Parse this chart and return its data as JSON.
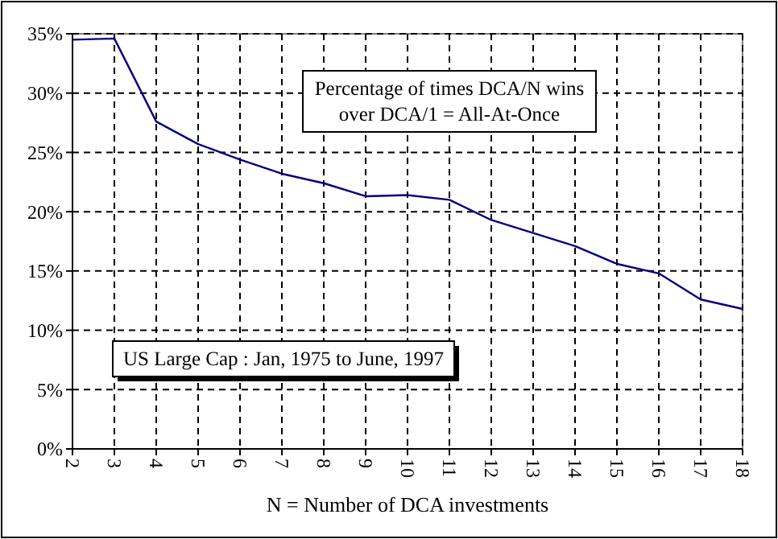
{
  "chart_data": {
    "type": "line",
    "xlabel": "N = Number of DCA investments",
    "annotations": [
      "Percentage of times DCA/N wins\nover DCA/1 = All-At-Once",
      "US Large Cap : Jan, 1975 to June, 1997"
    ],
    "x": [
      2,
      3,
      4,
      5,
      6,
      7,
      8,
      9,
      10,
      11,
      12,
      13,
      14,
      15,
      16,
      17,
      18
    ],
    "series": [
      {
        "color": "#000080",
        "values": [
          34.5,
          34.6,
          27.6,
          25.7,
          24.4,
          23.2,
          22.4,
          21.3,
          21.4,
          21.0,
          19.3,
          18.2,
          17.1,
          15.6,
          14.8,
          12.6,
          11.8
        ]
      }
    ],
    "xlim": [
      2,
      18
    ],
    "xticks": [
      2,
      3,
      4,
      5,
      6,
      7,
      8,
      9,
      10,
      11,
      12,
      13,
      14,
      15,
      16,
      17,
      18
    ],
    "ylim": [
      0,
      35
    ],
    "yticks": [
      {
        "value": 0,
        "label": "0%"
      },
      {
        "value": 5,
        "label": "5%"
      },
      {
        "value": 10,
        "label": "10%"
      },
      {
        "value": 15,
        "label": "15%"
      },
      {
        "value": 20,
        "label": "20%"
      },
      {
        "value": 25,
        "label": "25%"
      },
      {
        "value": 30,
        "label": "30%"
      },
      {
        "value": 35,
        "label": "35%"
      }
    ],
    "grid": true,
    "marker": "none",
    "line_style": "solid"
  }
}
